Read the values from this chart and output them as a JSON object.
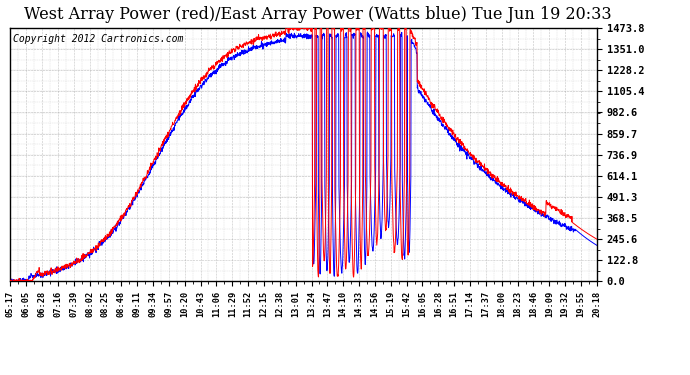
{
  "title": "West Array Power (red)/East Array Power (Watts blue) Tue Jun 19 20:33",
  "copyright": "Copyright 2012 Cartronics.com",
  "y_ticks": [
    0.0,
    122.8,
    245.6,
    368.5,
    491.3,
    614.1,
    736.9,
    859.7,
    982.6,
    1105.4,
    1228.2,
    1351.0,
    1473.8
  ],
  "x_labels": [
    "05:17",
    "06:05",
    "06:28",
    "07:16",
    "07:39",
    "08:02",
    "08:25",
    "08:48",
    "09:11",
    "09:34",
    "09:57",
    "10:20",
    "10:43",
    "11:06",
    "11:29",
    "11:52",
    "12:15",
    "12:38",
    "13:01",
    "13:24",
    "13:47",
    "14:10",
    "14:33",
    "14:56",
    "15:19",
    "15:42",
    "16:05",
    "16:28",
    "16:51",
    "17:14",
    "17:37",
    "18:00",
    "18:23",
    "18:46",
    "19:09",
    "19:32",
    "19:55",
    "20:18"
  ],
  "ylim": [
    0.0,
    1473.8
  ],
  "red_color": "#ff0000",
  "blue_color": "#0000ff",
  "grid_color": "#999999",
  "bg_color": "#ffffff",
  "title_fontsize": 11.5,
  "copyright_fontsize": 7.0
}
